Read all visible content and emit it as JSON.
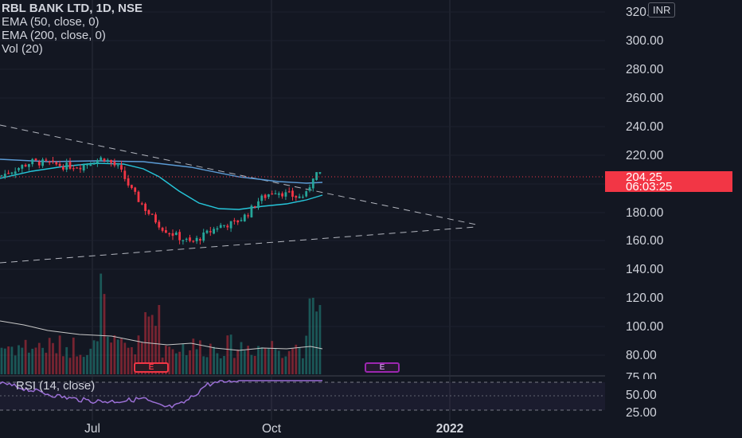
{
  "legend": {
    "symbol": "RBL BANK LTD, 1D, NSE",
    "ema50": "EMA (50, close, 0)",
    "ema200": "EMA (200, close, 0)",
    "volume": "Vol (20)"
  },
  "currency_badge": "INR",
  "last_price": {
    "price": "204.25",
    "countdown": "06:03:25"
  },
  "rsi_label": "RSI (14, close)",
  "earnings_marker_label": "E",
  "price_axis_ticks": [
    "320.00",
    "300.00",
    "280.00",
    "260.00",
    "240.00",
    "220.00",
    "180.00",
    "160.00",
    "140.00",
    "120.00",
    "100.00",
    "80.00",
    "75.00",
    "50.00",
    "25.00"
  ],
  "time_axis_ticks": [
    "Jul",
    "Oct",
    "2022"
  ],
  "colors": {
    "background": "#131722",
    "up": "#26a69a",
    "down": "#f23645",
    "ema50": "#26c6da",
    "ema200": "#5b9bd5",
    "rsi": "#9b6fd6",
    "volume_ma": "#c8c8c8"
  },
  "chart_data": {
    "type": "candlestick",
    "price_range": [
      60,
      320
    ],
    "rsi_range": [
      0,
      100
    ],
    "rsi_bands": [
      70,
      50,
      30
    ],
    "last_price": 204.25,
    "ema50_note": "EMA (50, close, 0)",
    "ema200_note": "EMA (200, close, 0)"
  }
}
